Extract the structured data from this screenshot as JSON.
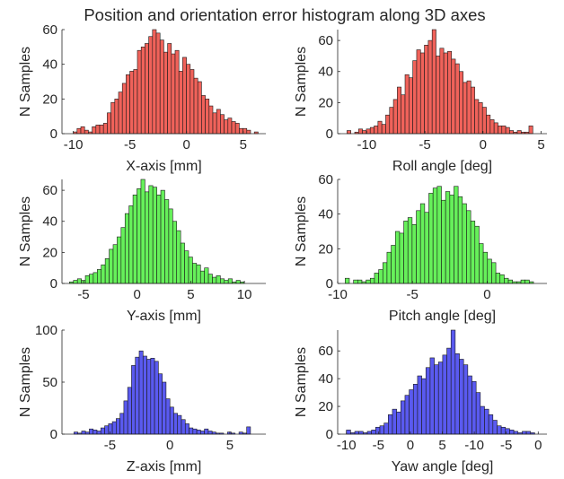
{
  "figure": {
    "title": "Position and orientation error histogram along 3D axes"
  },
  "colors": {
    "red": "#f0625a",
    "green": "#66f05a",
    "blue": "#5a5af0",
    "edge": "#1a1a1a"
  },
  "chart_data": [
    {
      "type": "histogram",
      "xlabel": "X-axis [mm]",
      "ylabel": "N Samples",
      "xlim": [
        -11,
        7
      ],
      "ylim": [
        0,
        60
      ],
      "xticks": [
        "-10",
        "-5",
        "0",
        "5"
      ],
      "yticks": [
        "0",
        "20",
        "40",
        "60"
      ],
      "color": "red",
      "bin_start": -10.0,
      "bin_width": 0.333,
      "counts": [
        1,
        3,
        4,
        2,
        1,
        4,
        5,
        5,
        6,
        12,
        18,
        20,
        24,
        29,
        34,
        36,
        37,
        48,
        50,
        52,
        56,
        60,
        58,
        54,
        47,
        52,
        46,
        48,
        36,
        44,
        40,
        37,
        32,
        30,
        22,
        20,
        16,
        12,
        14,
        11,
        8,
        9,
        7,
        6,
        3,
        3,
        2,
        0,
        1,
        0,
        0,
        0,
        0,
        0,
        0,
        0,
        0,
        0,
        0,
        0,
        0,
        0,
        0,
        0,
        0,
        0,
        0,
        0,
        0,
        0,
        0,
        0,
        0,
        0,
        0,
        0,
        0,
        0,
        0,
        0,
        0,
        0,
        0,
        0,
        0,
        0,
        0,
        0,
        0,
        0,
        0,
        0,
        0,
        0,
        0,
        0,
        0,
        0,
        0,
        0
      ]
    },
    {
      "type": "histogram",
      "xlabel": "Roll angle [deg]",
      "ylabel": "N Samples",
      "xlim": [
        -12.5,
        5.5
      ],
      "ylim": [
        0,
        67
      ],
      "xticks": [
        "-10",
        "-5",
        "0",
        "5"
      ],
      "yticks": [
        "0",
        "20",
        "40",
        "60"
      ],
      "color": "red",
      "bin_start": -11.7,
      "bin_width": 0.333,
      "counts": [
        2,
        0,
        1,
        3,
        2,
        3,
        4,
        5,
        8,
        6,
        12,
        17,
        22,
        30,
        25,
        38,
        36,
        47,
        54,
        52,
        57,
        60,
        67,
        50,
        55,
        52,
        53,
        48,
        45,
        40,
        33,
        34,
        30,
        22,
        20,
        17,
        12,
        9,
        7,
        5,
        5,
        4,
        2,
        1,
        2,
        1,
        1,
        5,
        0,
        0,
        0,
        0,
        0,
        0,
        0,
        0
      ]
    },
    {
      "type": "histogram",
      "xlabel": "Y-axis [mm]",
      "ylabel": "N Samples",
      "xlim": [
        -7,
        12
      ],
      "ylim": [
        0,
        67
      ],
      "xticks": [
        "-5",
        "0",
        "5",
        "10"
      ],
      "yticks": [
        "0",
        "20",
        "40",
        "60"
      ],
      "color": "green",
      "bin_start": -6.3,
      "bin_width": 0.37,
      "counts": [
        1,
        2,
        3,
        2,
        5,
        6,
        7,
        9,
        12,
        16,
        22,
        25,
        30,
        36,
        45,
        50,
        57,
        61,
        67,
        59,
        63,
        62,
        57,
        60,
        54,
        48,
        40,
        34,
        26,
        21,
        17,
        13,
        12,
        8,
        10,
        6,
        4,
        5,
        3,
        2,
        3,
        1,
        2,
        1,
        0,
        0,
        0,
        0,
        0
      ]
    },
    {
      "type": "histogram",
      "xlabel": "Pitch angle [deg]",
      "ylabel": "N Samples",
      "xlim": [
        -10,
        4
      ],
      "ylim": [
        0,
        60
      ],
      "xticks": [
        "-10",
        "-5",
        "0"
      ],
      "yticks": [
        "0",
        "20",
        "40",
        "60"
      ],
      "color": "green",
      "bin_start": -9.5,
      "bin_width": 0.28,
      "counts": [
        3,
        0,
        2,
        2,
        1,
        2,
        3,
        6,
        8,
        12,
        18,
        22,
        30,
        29,
        36,
        38,
        34,
        42,
        46,
        41,
        52,
        55,
        56,
        48,
        53,
        51,
        56,
        50,
        46,
        42,
        36,
        33,
        23,
        18,
        14,
        12,
        6,
        5,
        3,
        2,
        1,
        1,
        2,
        2,
        1,
        0,
        0,
        0,
        0,
        0
      ]
    },
    {
      "type": "histogram",
      "xlabel": "Z-axis [mm]",
      "ylabel": "N Samples",
      "xlim": [
        -9,
        8
      ],
      "ylim": [
        0,
        100
      ],
      "xticks": [
        "-5",
        "0",
        "5"
      ],
      "yticks": [
        "0",
        "50",
        "100"
      ],
      "color": "blue",
      "bin_start": -8.0,
      "bin_width": 0.32,
      "counts": [
        2,
        1,
        3,
        2,
        5,
        4,
        3,
        6,
        8,
        10,
        12,
        15,
        20,
        32,
        45,
        66,
        74,
        80,
        75,
        72,
        73,
        70,
        58,
        50,
        34,
        26,
        20,
        18,
        14,
        10,
        6,
        5,
        4,
        3,
        5,
        3,
        2,
        1,
        1,
        0,
        2,
        1,
        0,
        2,
        1,
        7,
        0,
        0,
        0,
        0
      ]
    },
    {
      "type": "histogram",
      "xlabel": "Yaw angle [deg]",
      "ylabel": "N Samples",
      "xlim": [
        -11,
        1
      ],
      "ylim": [
        0,
        75
      ],
      "xticks": [
        "-10",
        "-5",
        "0",
        "5",
        "-10",
        "-5",
        "0"
      ],
      "yticks": [
        "0",
        "20",
        "40",
        "60"
      ],
      "color": "blue",
      "bin_start": -10.5,
      "bin_width": 0.24,
      "counts": [
        3,
        1,
        2,
        2,
        1,
        2,
        3,
        5,
        6,
        8,
        14,
        18,
        16,
        24,
        28,
        32,
        36,
        42,
        40,
        48,
        55,
        50,
        52,
        57,
        62,
        75,
        58,
        54,
        50,
        42,
        38,
        30,
        20,
        18,
        14,
        10,
        6,
        5,
        4,
        3,
        2,
        1,
        2,
        2,
        1,
        0,
        0,
        0,
        0,
        0
      ]
    }
  ]
}
